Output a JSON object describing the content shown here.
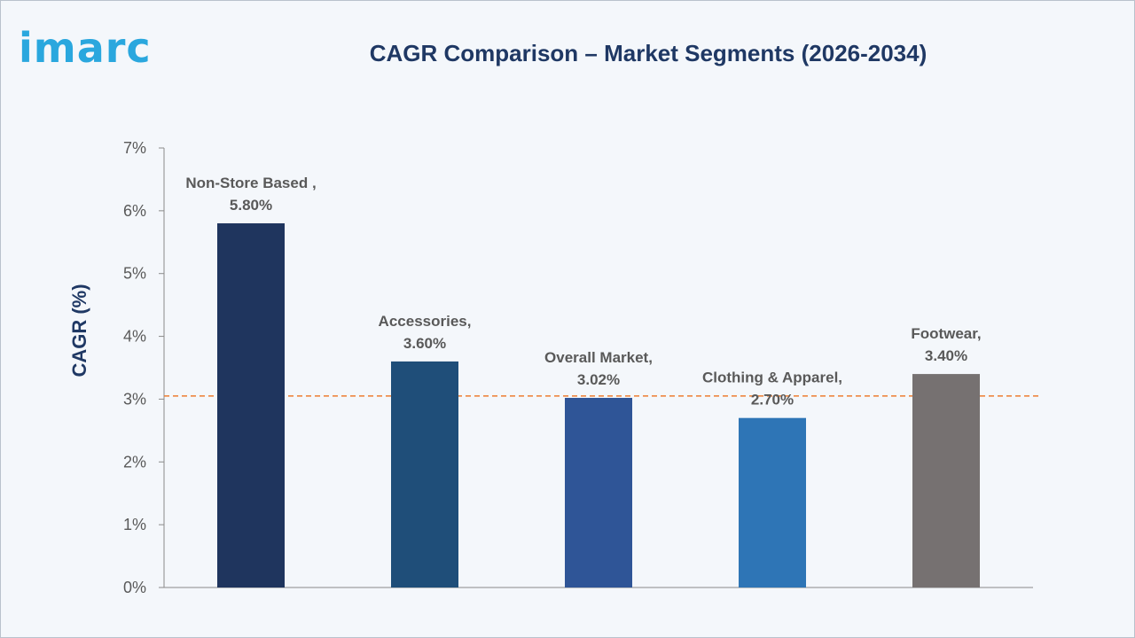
{
  "brand": {
    "logo_text": "imarc",
    "logo_color": "#2aa7de"
  },
  "colors": {
    "title": "#1f3864",
    "axis": "#8a8a8a",
    "tick_text": "#595959",
    "data_label": "#595959",
    "reference_line": "#ed7d31"
  },
  "chart_data": {
    "type": "bar",
    "title": "CAGR Comparison – Market Segments (2026-2034)",
    "xlabel": "",
    "ylabel": "CAGR (%)",
    "ylim": [
      0,
      7
    ],
    "yticks": [
      0,
      1,
      2,
      3,
      4,
      5,
      6,
      7
    ],
    "ytick_labels": [
      "0%",
      "1%",
      "2%",
      "3%",
      "4%",
      "5%",
      "6%",
      "7%"
    ],
    "categories": [
      "Non-Store Based",
      "Accessories",
      "Overall Market",
      "Clothing & Apparel",
      "Footwear"
    ],
    "values": [
      5.8,
      3.6,
      3.02,
      2.7,
      3.4
    ],
    "data_labels": [
      [
        "Non-Store Based ,",
        "5.80%"
      ],
      [
        "Accessories,",
        "3.60%"
      ],
      [
        "Overall Market,",
        "3.02%"
      ],
      [
        "Clothing & Apparel,",
        "2.70%"
      ],
      [
        "Footwear,",
        "3.40%"
      ]
    ],
    "bar_colors": [
      "#1f355e",
      "#1f4e79",
      "#2f5597",
      "#2e75b6",
      "#767171"
    ],
    "reference_line": {
      "value": 3.05,
      "style": "dashed"
    },
    "grid": false,
    "legend": "none"
  }
}
